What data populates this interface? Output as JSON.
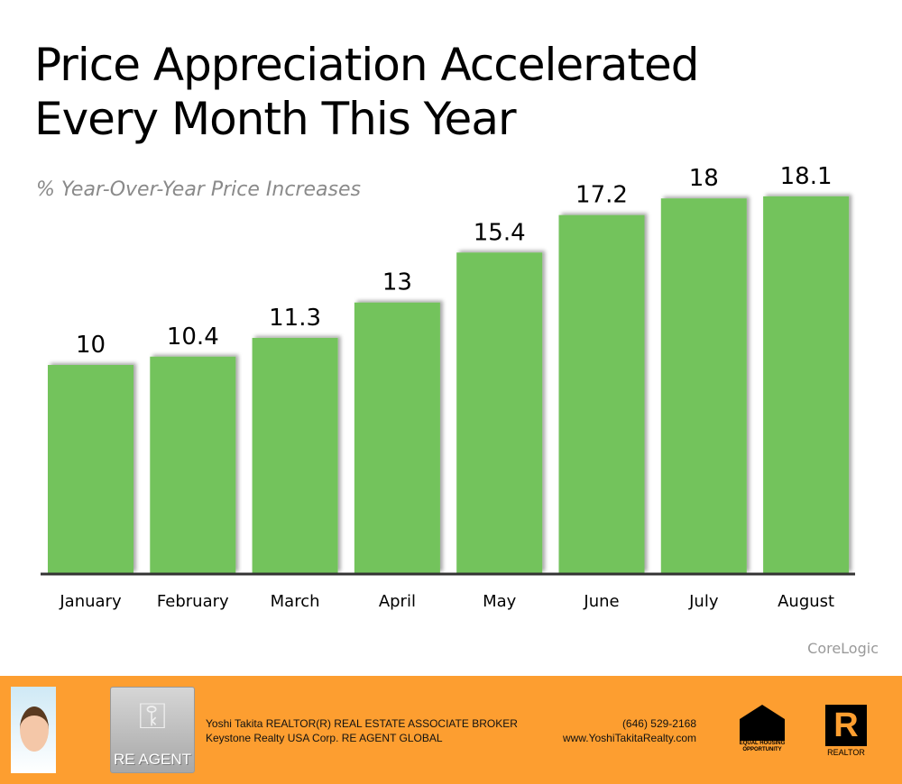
{
  "chart_data": {
    "type": "bar",
    "title": "Price Appreciation Accelerated Every Month This Year",
    "title_lines": [
      "Price Appreciation Accelerated",
      "Every Month This Year"
    ],
    "subtitle": "% Year-Over-Year Price Increases",
    "categories": [
      "January",
      "February",
      "March",
      "April",
      "May",
      "June",
      "July",
      "August"
    ],
    "values": [
      10,
      10.4,
      11.3,
      13,
      15.4,
      17.2,
      18,
      18.1
    ],
    "value_labels": [
      "10",
      "10.4",
      "11.3",
      "13",
      "15.4",
      "17.2",
      "18",
      "18.1"
    ],
    "ylim": [
      0,
      20
    ],
    "xlabel": "",
    "ylabel": "",
    "grid": false,
    "bar_color": "#73c35b",
    "source": "CoreLogic"
  },
  "footer": {
    "line1": "Yoshi Takita REALTOR(R) REAL ESTATE ASSOCIATE BROKER",
    "line2": "Keystone Realty USA Corp.  RE AGENT GLOBAL",
    "phone": "(646) 529-2168",
    "website": "www.YoshiTakitaRealty.com",
    "reagent_logo": "RE AGENT",
    "eho_logo": "EQUAL HOUSING OPPORTUNITY",
    "realtor_logo": "REALTOR",
    "realtor_mark": "R",
    "color": "#fd9e30"
  }
}
